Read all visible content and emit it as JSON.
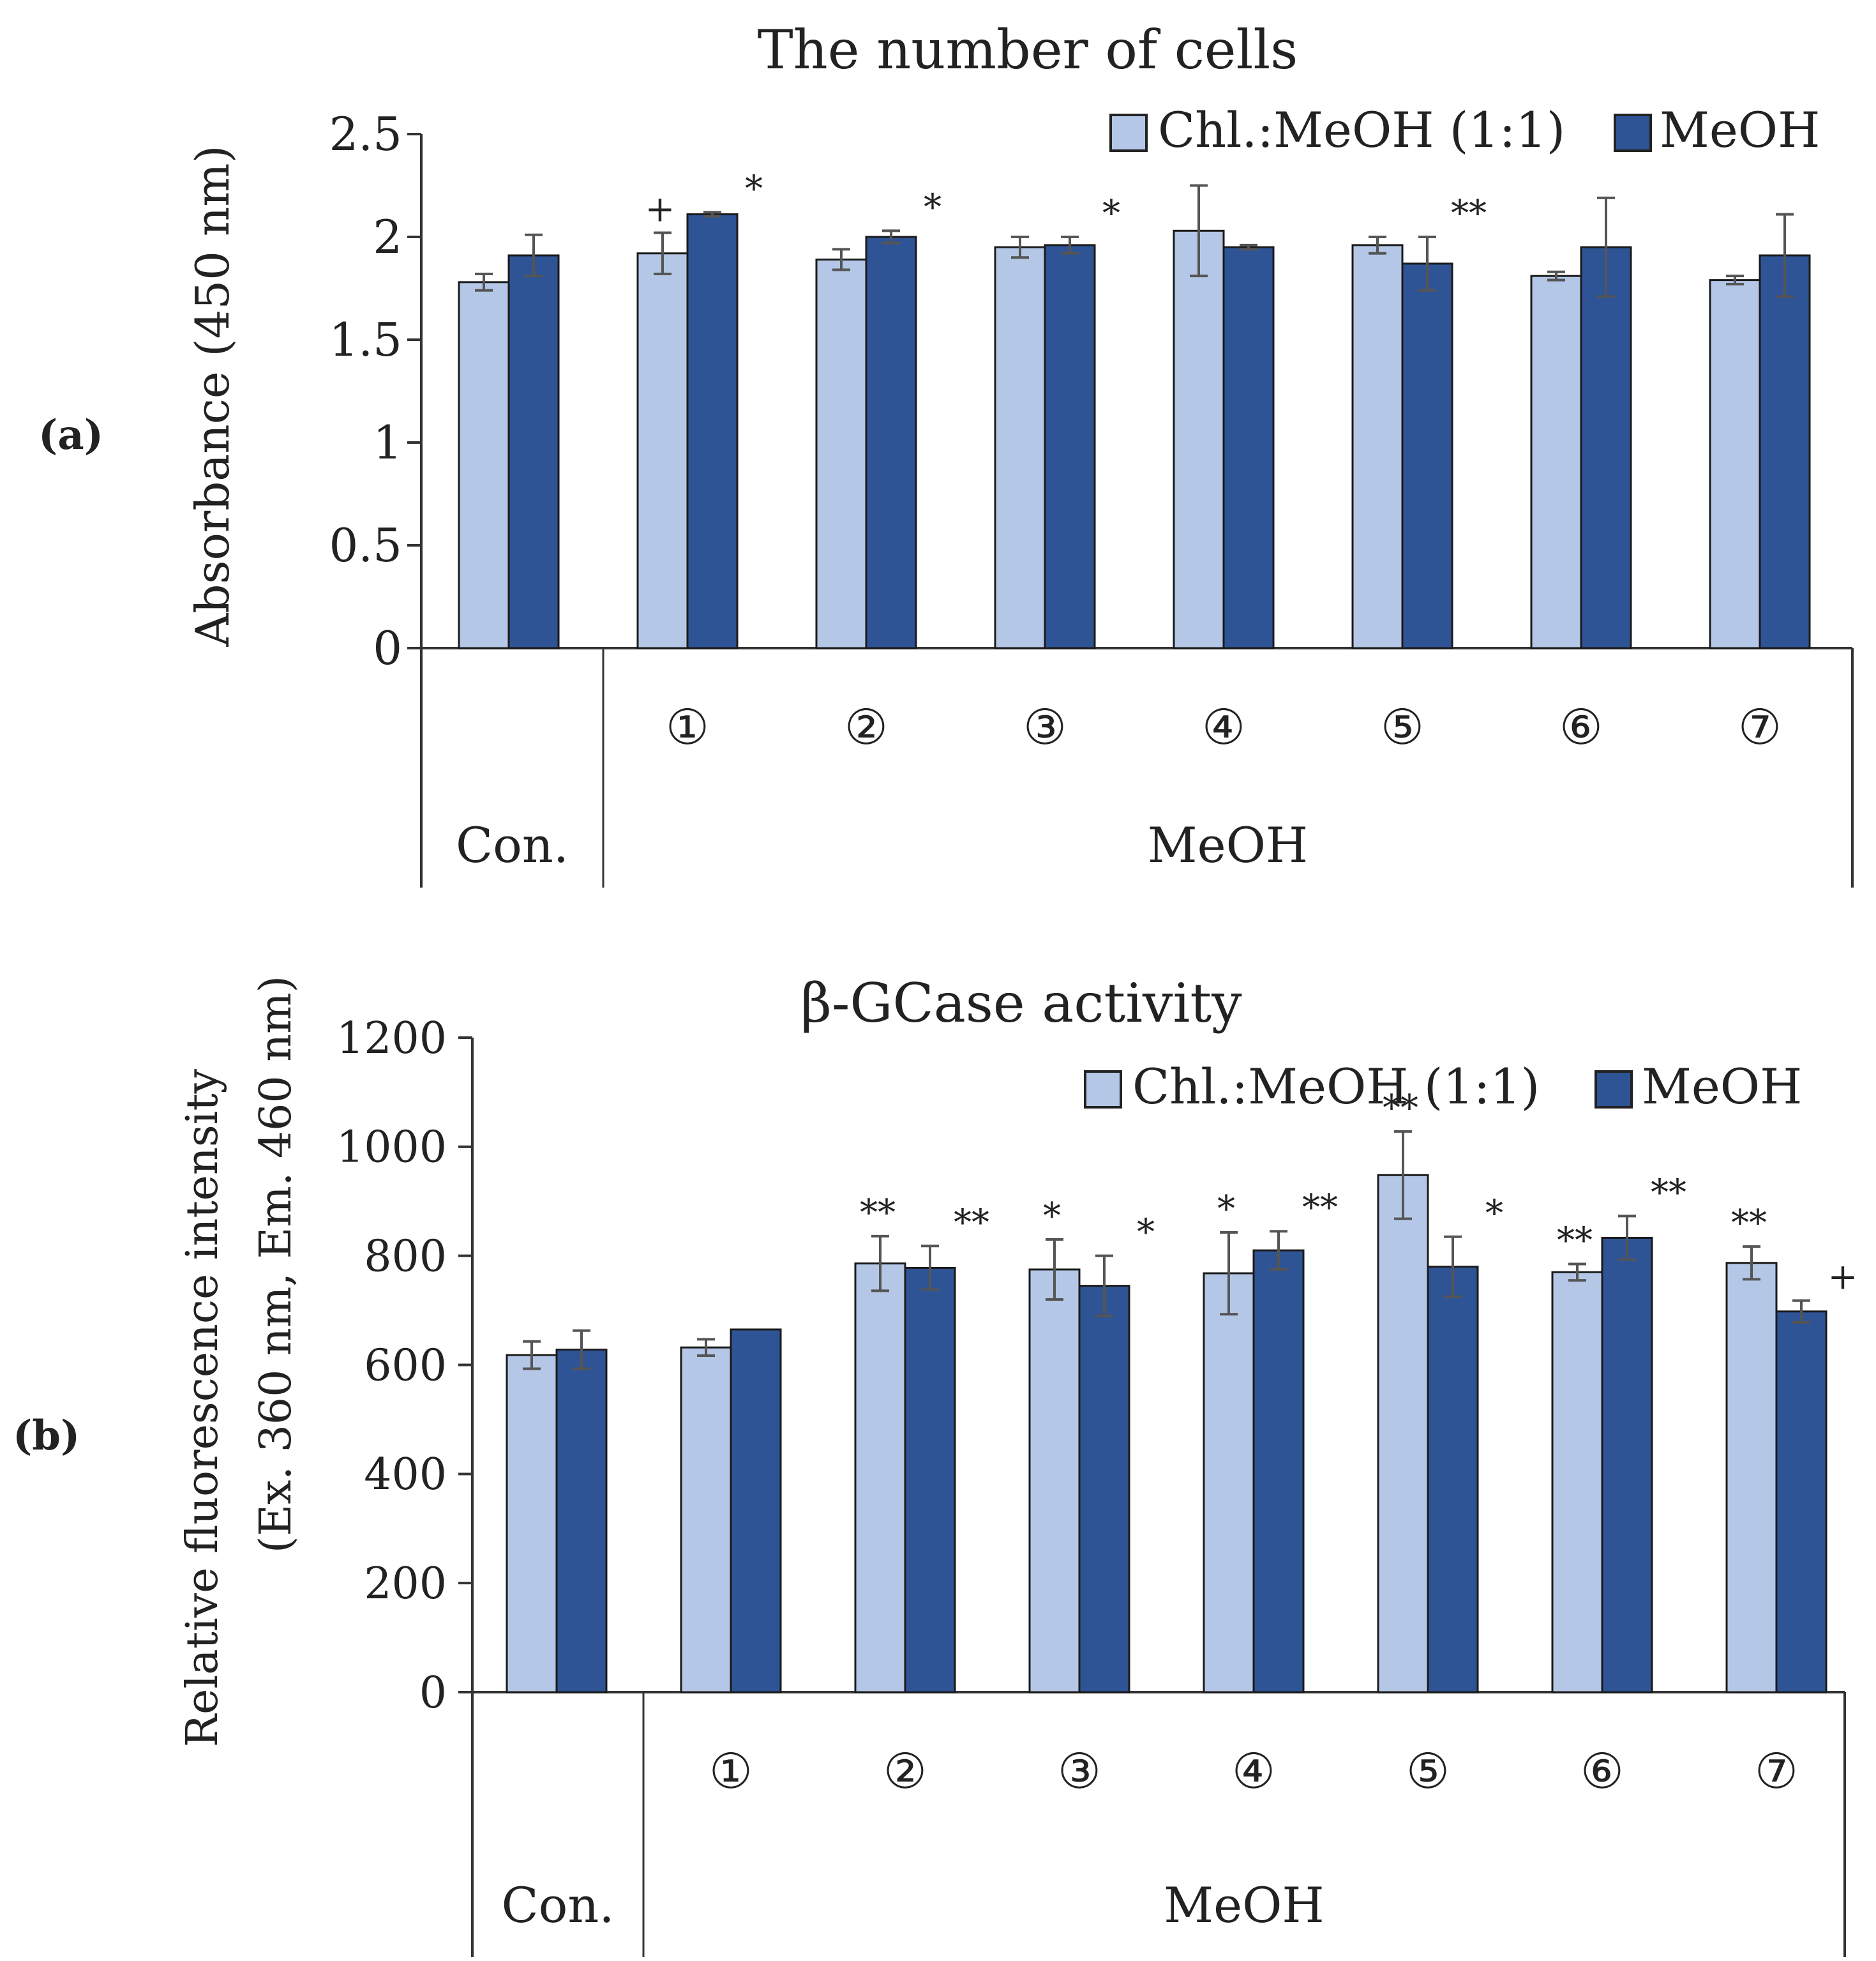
{
  "chart_data": [
    {
      "panel_label": "(a)",
      "type": "bar",
      "title": "The number of cells",
      "ylabel": "Absorbance (450 nm)",
      "ylim": [
        0,
        2.5
      ],
      "yticks": [
        "0",
        "0.5",
        "1",
        "1.5",
        "2",
        "2.5"
      ],
      "categories": [
        "Con.",
        "①",
        "②",
        "③",
        "④",
        "⑤",
        "⑥",
        "⑦"
      ],
      "group_labels": [
        "Con.",
        "MeOH"
      ],
      "series": [
        {
          "name": "Chl.:MeOH (1:1)",
          "color": "#b4c7e7",
          "values": [
            1.78,
            1.92,
            1.89,
            1.95,
            2.03,
            1.96,
            1.81,
            1.79
          ],
          "errors": [
            0.04,
            0.1,
            0.05,
            0.05,
            0.22,
            0.04,
            0.02,
            0.02
          ],
          "annotations": [
            "",
            "+",
            "",
            "",
            "",
            "",
            "",
            ""
          ]
        },
        {
          "name": "MeOH",
          "color": "#2f5496",
          "values": [
            1.91,
            2.11,
            2.0,
            1.96,
            1.95,
            1.87,
            1.95,
            1.91
          ],
          "errors": [
            0.1,
            0.01,
            0.03,
            0.04,
            0.01,
            0.13,
            0.24,
            0.2
          ],
          "annotations": [
            "",
            "*",
            "*",
            "*",
            "",
            "**",
            "",
            ""
          ]
        }
      ]
    },
    {
      "panel_label": "(b)",
      "type": "bar",
      "title": "β-GCase activity",
      "ylabel": "Relative fluorescence intensity",
      "ylabel2": "(Ex. 360 nm, Em. 460 nm)",
      "ylim": [
        0,
        1200
      ],
      "yticks": [
        "0",
        "200",
        "400",
        "600",
        "800",
        "1000",
        "1200"
      ],
      "categories": [
        "Con.",
        "①",
        "②",
        "③",
        "④",
        "⑤",
        "⑥",
        "⑦"
      ],
      "group_labels": [
        "Con.",
        "MeOH"
      ],
      "series": [
        {
          "name": "Chl.:MeOH (1:1)",
          "color": "#b4c7e7",
          "values": [
            618,
            632,
            786,
            775,
            768,
            948,
            770,
            787
          ],
          "errors": [
            25,
            15,
            50,
            55,
            75,
            80,
            15,
            30
          ],
          "annotations": [
            "",
            "",
            "**",
            "*",
            "*",
            "**",
            "**",
            "**"
          ]
        },
        {
          "name": "MeOH",
          "color": "#2f5496",
          "values": [
            628,
            665,
            778,
            745,
            810,
            780,
            833,
            698
          ],
          "errors": [
            35,
            0,
            40,
            55,
            35,
            55,
            40,
            20
          ],
          "annotations": [
            "",
            "",
            "**",
            "*",
            "**",
            "*",
            "**",
            "+"
          ]
        }
      ]
    }
  ]
}
